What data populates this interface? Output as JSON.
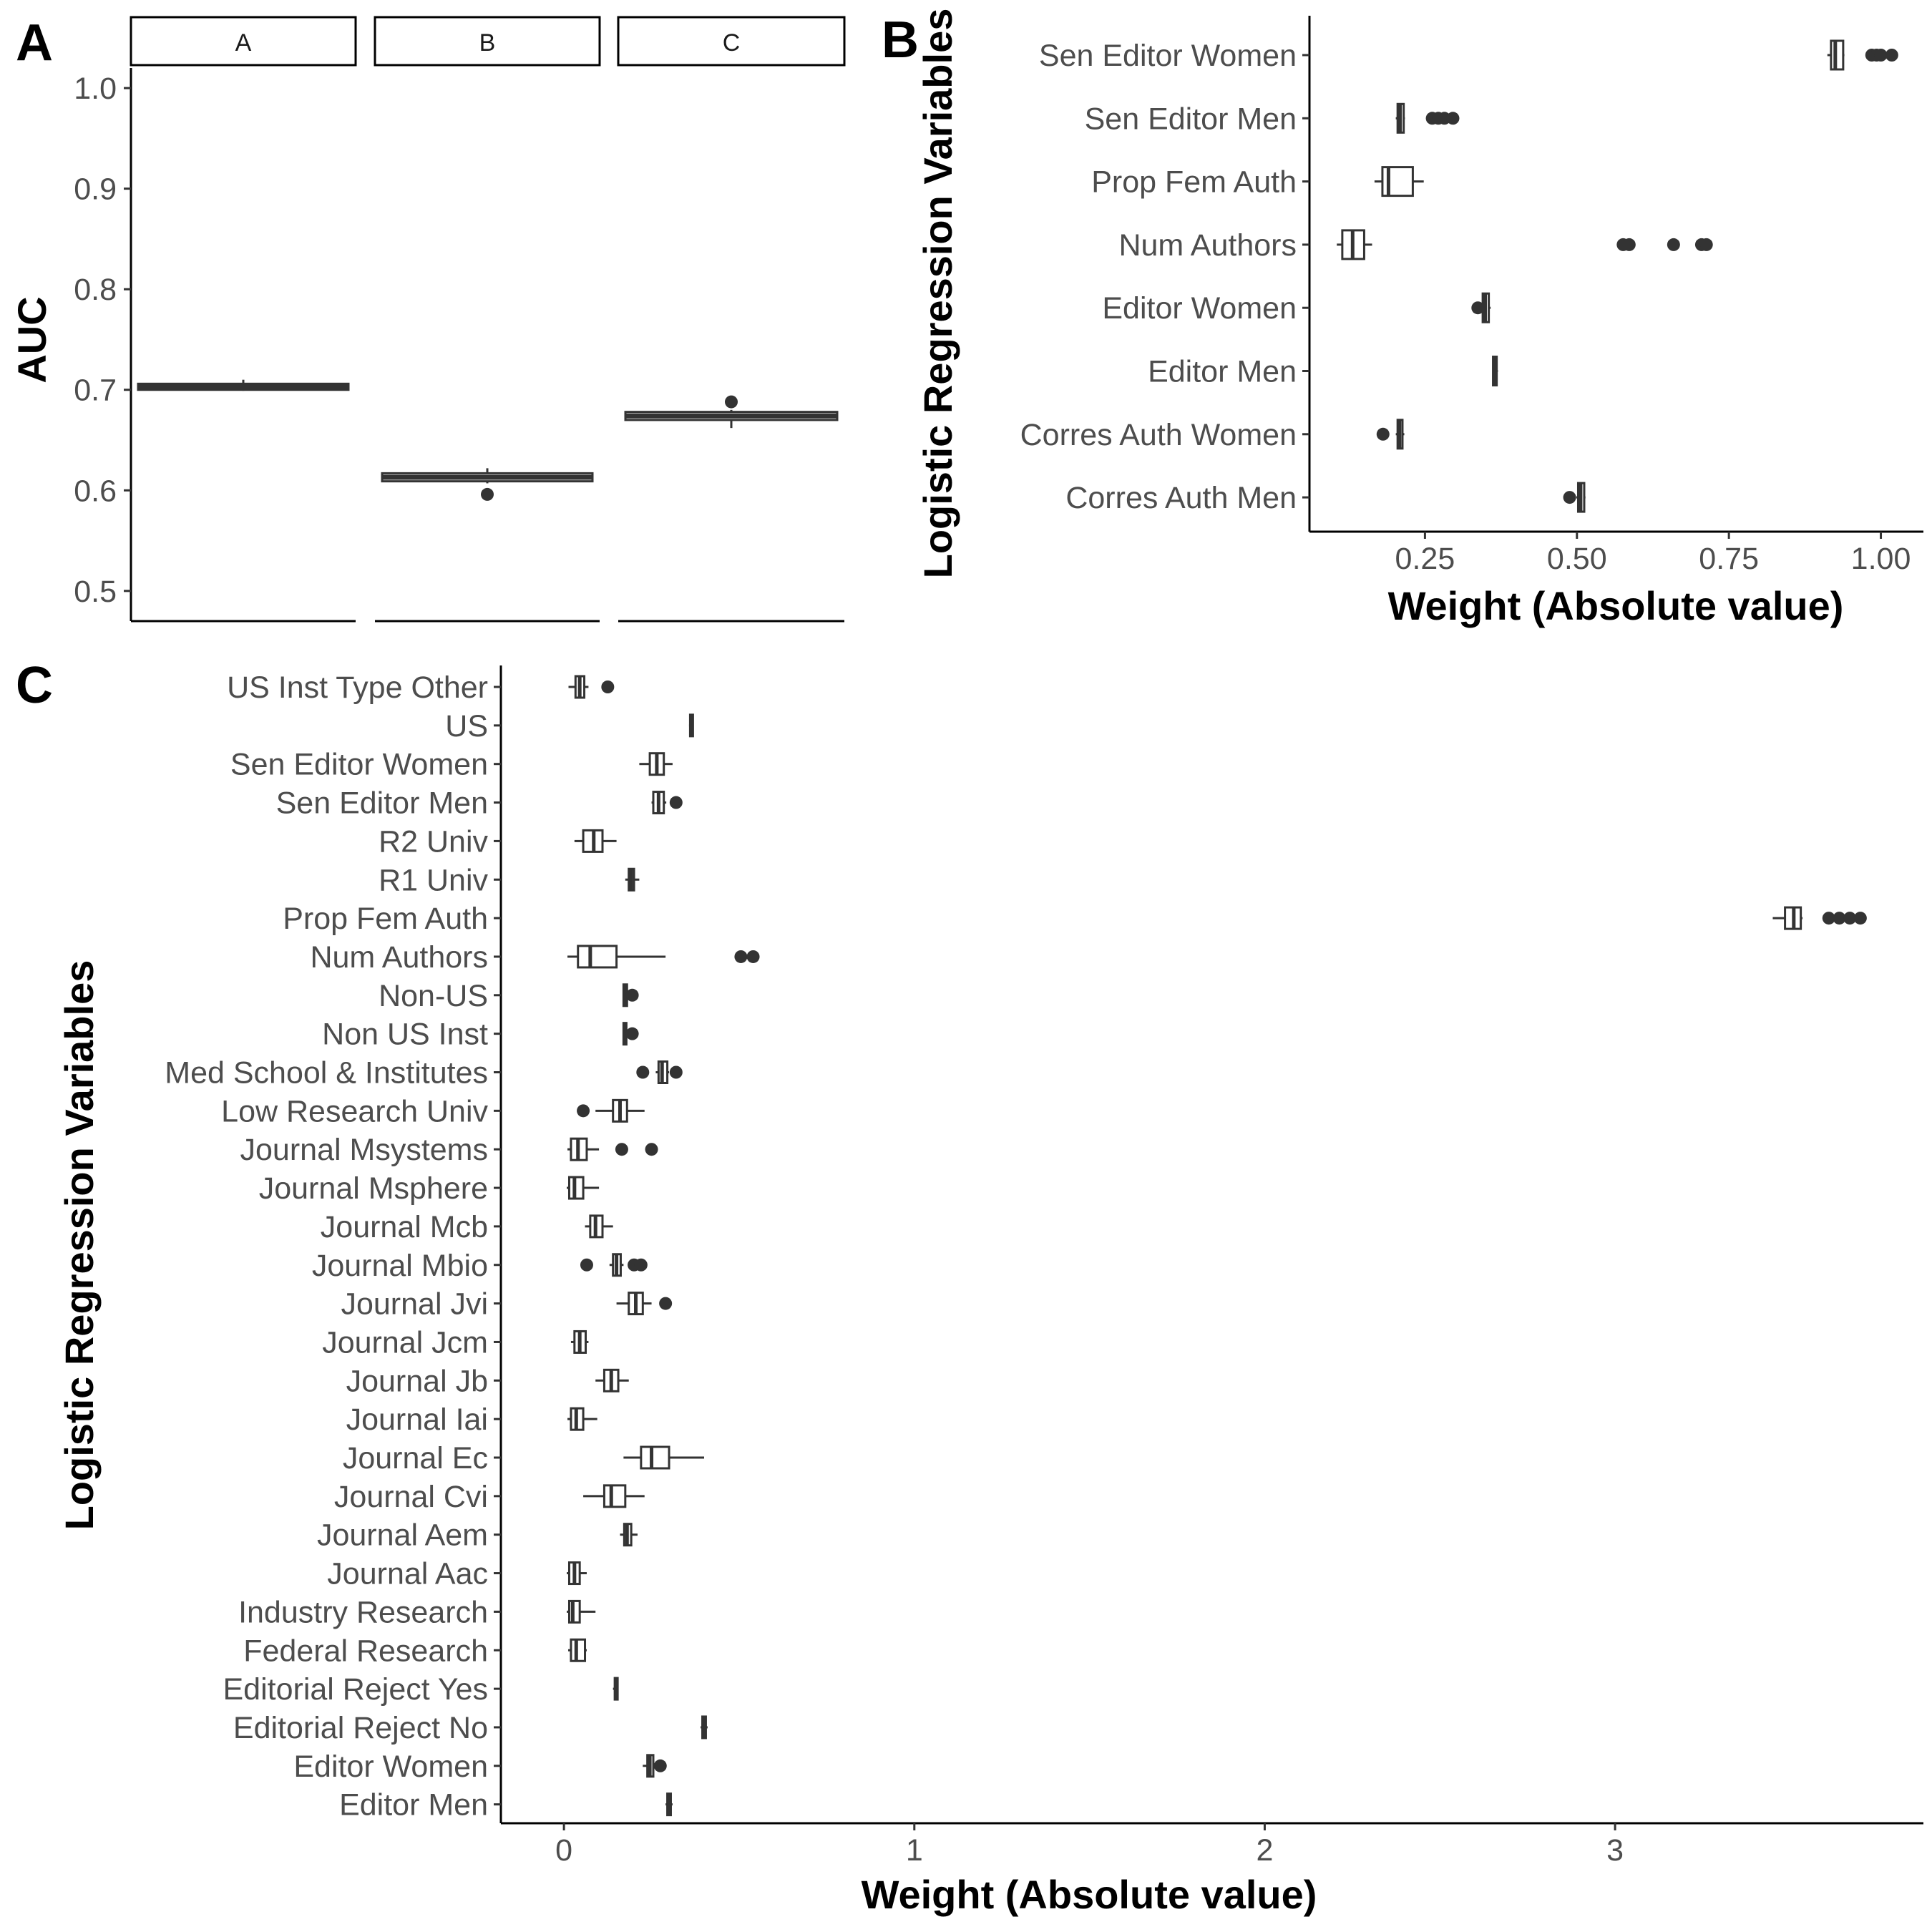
{
  "panel_labels": {
    "a": "A",
    "b": "B",
    "c": "C"
  },
  "chart_data": [
    {
      "type": "box",
      "facets": [
        "A",
        "B",
        "C"
      ],
      "ylabel": "AUC",
      "xlabel": "",
      "ylim": [
        0.47,
        1.02
      ],
      "yticks": [
        "0.5",
        "0.6",
        "0.7",
        "0.8",
        "0.9",
        "1.0"
      ],
      "boxes": [
        {
          "facet": "A",
          "q1": 0.7,
          "median": 0.703,
          "q3": 0.706,
          "whisker_low": 0.699,
          "whisker_high": 0.71,
          "outliers": []
        },
        {
          "facet": "B",
          "q1": 0.609,
          "median": 0.613,
          "q3": 0.617,
          "whisker_low": 0.607,
          "whisker_high": 0.622,
          "outliers": [
            0.596
          ]
        },
        {
          "facet": "C",
          "q1": 0.67,
          "median": 0.674,
          "q3": 0.678,
          "whisker_low": 0.662,
          "whisker_high": 0.68,
          "outliers": [
            0.688
          ]
        }
      ]
    },
    {
      "type": "box",
      "orientation": "horizontal",
      "xlabel": "Weight (Absolute value)",
      "ylabel": "Logistic Regression Variables",
      "xlim": [
        0.06,
        1.07
      ],
      "xticks": [
        "0.25",
        "0.50",
        "0.75",
        "1.00"
      ],
      "categories": [
        "Sen Editor Women",
        "Sen Editor Men",
        "Prop Fem Auth",
        "Num Authors",
        "Editor Women",
        "Editor Men",
        "Corres Auth Women",
        "Corres Auth Men"
      ],
      "boxes": [
        {
          "q1": 0.918,
          "median": 0.925,
          "q3": 0.938,
          "whisker_low": 0.912,
          "whisker_high": 0.94,
          "outliers": [
            0.985,
            0.993,
            1.0,
            1.018
          ]
        },
        {
          "q1": 0.205,
          "median": 0.209,
          "q3": 0.215,
          "whisker_low": 0.202,
          "whisker_high": 0.217,
          "outliers": [
            0.262,
            0.272,
            0.282,
            0.296
          ]
        },
        {
          "q1": 0.18,
          "median": 0.19,
          "q3": 0.23,
          "whisker_low": 0.167,
          "whisker_high": 0.248,
          "outliers": []
        },
        {
          "q1": 0.114,
          "median": 0.131,
          "q3": 0.15,
          "whisker_low": 0.105,
          "whisker_high": 0.163,
          "outliers": [
            0.576,
            0.586,
            0.659,
            0.705,
            0.713
          ]
        },
        {
          "q1": 0.345,
          "median": 0.349,
          "q3": 0.355,
          "whisker_low": 0.342,
          "whisker_high": 0.358,
          "outliers": [
            0.337
          ]
        },
        {
          "q1": 0.362,
          "median": 0.364,
          "q3": 0.368,
          "whisker_low": 0.361,
          "whisker_high": 0.37,
          "outliers": []
        },
        {
          "q1": 0.205,
          "median": 0.208,
          "q3": 0.213,
          "whisker_low": 0.202,
          "whisker_high": 0.216,
          "outliers": [
            0.181
          ]
        },
        {
          "q1": 0.502,
          "median": 0.506,
          "q3": 0.512,
          "whisker_low": 0.499,
          "whisker_high": 0.514,
          "outliers": [
            0.488
          ]
        }
      ]
    },
    {
      "type": "box",
      "orientation": "horizontal",
      "xlabel": "Weight (Absolute value)",
      "ylabel": "Logistic Regression Variables",
      "xlim": [
        -0.18,
        3.88
      ],
      "xticks": [
        "0",
        "1",
        "2",
        "3"
      ],
      "categories": [
        "US Inst Type Other",
        "US",
        "Sen Editor Women",
        "Sen Editor Men",
        "R2 Univ",
        "R1 Univ",
        "Prop Fem Auth",
        "Num Authors",
        "Non-US",
        "Non US Inst",
        "Med School & Institutes",
        "Low Research Univ",
        "Journal Msystems",
        "Journal Msphere",
        "Journal Mcb",
        "Journal Mbio",
        "Journal Jvi",
        "Journal Jcm",
        "Journal Jb",
        "Journal Iai",
        "Journal Ec",
        "Journal Cvi",
        "Journal Aem",
        "Journal Aac",
        "Industry Research",
        "Federal Research",
        "Editorial Reject Yes",
        "Editorial Reject No",
        "Editor Women",
        "Editor Men"
      ],
      "boxes": [
        {
          "q1": 0.033,
          "median": 0.045,
          "q3": 0.058,
          "whisker_low": 0.013,
          "whisker_high": 0.07,
          "outliers": [
            0.125
          ]
        },
        {
          "q1": 0.36,
          "median": 0.363,
          "q3": 0.367,
          "whisker_low": 0.357,
          "whisker_high": 0.37,
          "outliers": []
        },
        {
          "q1": 0.245,
          "median": 0.265,
          "q3": 0.285,
          "whisker_low": 0.215,
          "whisker_high": 0.31,
          "outliers": []
        },
        {
          "q1": 0.255,
          "median": 0.27,
          "q3": 0.285,
          "whisker_low": 0.25,
          "whisker_high": 0.292,
          "outliers": [
            0.32
          ]
        },
        {
          "q1": 0.055,
          "median": 0.085,
          "q3": 0.11,
          "whisker_low": 0.03,
          "whisker_high": 0.15,
          "outliers": []
        },
        {
          "q1": 0.185,
          "median": 0.192,
          "q3": 0.2,
          "whisker_low": 0.175,
          "whisker_high": 0.215,
          "outliers": []
        },
        {
          "q1": 3.485,
          "median": 3.51,
          "q3": 3.53,
          "whisker_low": 3.45,
          "whisker_high": 3.535,
          "outliers": [
            3.61,
            3.64,
            3.67,
            3.7
          ]
        },
        {
          "q1": 0.04,
          "median": 0.075,
          "q3": 0.15,
          "whisker_low": 0.01,
          "whisker_high": 0.29,
          "outliers": [
            0.505,
            0.54
          ]
        },
        {
          "q1": 0.17,
          "median": 0.175,
          "q3": 0.18,
          "whisker_low": 0.168,
          "whisker_high": 0.185,
          "outliers": [
            0.195
          ]
        },
        {
          "q1": 0.17,
          "median": 0.174,
          "q3": 0.178,
          "whisker_low": 0.168,
          "whisker_high": 0.182,
          "outliers": [
            0.195
          ]
        },
        {
          "q1": 0.27,
          "median": 0.28,
          "q3": 0.295,
          "whisker_low": 0.262,
          "whisker_high": 0.3,
          "outliers": [
            0.225,
            0.32
          ]
        },
        {
          "q1": 0.14,
          "median": 0.16,
          "q3": 0.18,
          "whisker_low": 0.09,
          "whisker_high": 0.23,
          "outliers": [
            0.055
          ]
        },
        {
          "q1": 0.02,
          "median": 0.04,
          "q3": 0.065,
          "whisker_low": 0.01,
          "whisker_high": 0.1,
          "outliers": [
            0.165,
            0.25
          ]
        },
        {
          "q1": 0.015,
          "median": 0.03,
          "q3": 0.055,
          "whisker_low": 0.008,
          "whisker_high": 0.1,
          "outliers": []
        },
        {
          "q1": 0.075,
          "median": 0.09,
          "q3": 0.11,
          "whisker_low": 0.06,
          "whisker_high": 0.14,
          "outliers": []
        },
        {
          "q1": 0.14,
          "median": 0.15,
          "q3": 0.162,
          "whisker_low": 0.13,
          "whisker_high": 0.17,
          "outliers": [
            0.065,
            0.2,
            0.22
          ]
        },
        {
          "q1": 0.185,
          "median": 0.205,
          "q3": 0.225,
          "whisker_low": 0.15,
          "whisker_high": 0.25,
          "outliers": [
            0.29
          ]
        },
        {
          "q1": 0.03,
          "median": 0.045,
          "q3": 0.062,
          "whisker_low": 0.02,
          "whisker_high": 0.07,
          "outliers": []
        },
        {
          "q1": 0.115,
          "median": 0.135,
          "q3": 0.155,
          "whisker_low": 0.09,
          "whisker_high": 0.185,
          "outliers": []
        },
        {
          "q1": 0.02,
          "median": 0.035,
          "q3": 0.055,
          "whisker_low": 0.01,
          "whisker_high": 0.095,
          "outliers": []
        },
        {
          "q1": 0.22,
          "median": 0.25,
          "q3": 0.3,
          "whisker_low": 0.17,
          "whisker_high": 0.4,
          "outliers": []
        },
        {
          "q1": 0.115,
          "median": 0.135,
          "q3": 0.175,
          "whisker_low": 0.055,
          "whisker_high": 0.23,
          "outliers": []
        },
        {
          "q1": 0.172,
          "median": 0.18,
          "q3": 0.192,
          "whisker_low": 0.16,
          "whisker_high": 0.21,
          "outliers": []
        },
        {
          "q1": 0.015,
          "median": 0.03,
          "q3": 0.045,
          "whisker_low": 0.008,
          "whisker_high": 0.065,
          "outliers": []
        },
        {
          "q1": 0.015,
          "median": 0.025,
          "q3": 0.045,
          "whisker_low": 0.008,
          "whisker_high": 0.09,
          "outliers": []
        },
        {
          "q1": 0.02,
          "median": 0.035,
          "q3": 0.06,
          "whisker_low": 0.012,
          "whisker_high": 0.065,
          "outliers": []
        },
        {
          "q1": 0.145,
          "median": 0.148,
          "q3": 0.152,
          "whisker_low": 0.14,
          "whisker_high": 0.155,
          "outliers": []
        },
        {
          "q1": 0.395,
          "median": 0.4,
          "q3": 0.405,
          "whisker_low": 0.39,
          "whisker_high": 0.41,
          "outliers": []
        },
        {
          "q1": 0.238,
          "median": 0.245,
          "q3": 0.255,
          "whisker_low": 0.225,
          "whisker_high": 0.265,
          "outliers": [
            0.275
          ]
        },
        {
          "q1": 0.295,
          "median": 0.3,
          "q3": 0.305,
          "whisker_low": 0.29,
          "whisker_high": 0.31,
          "outliers": []
        }
      ]
    }
  ]
}
